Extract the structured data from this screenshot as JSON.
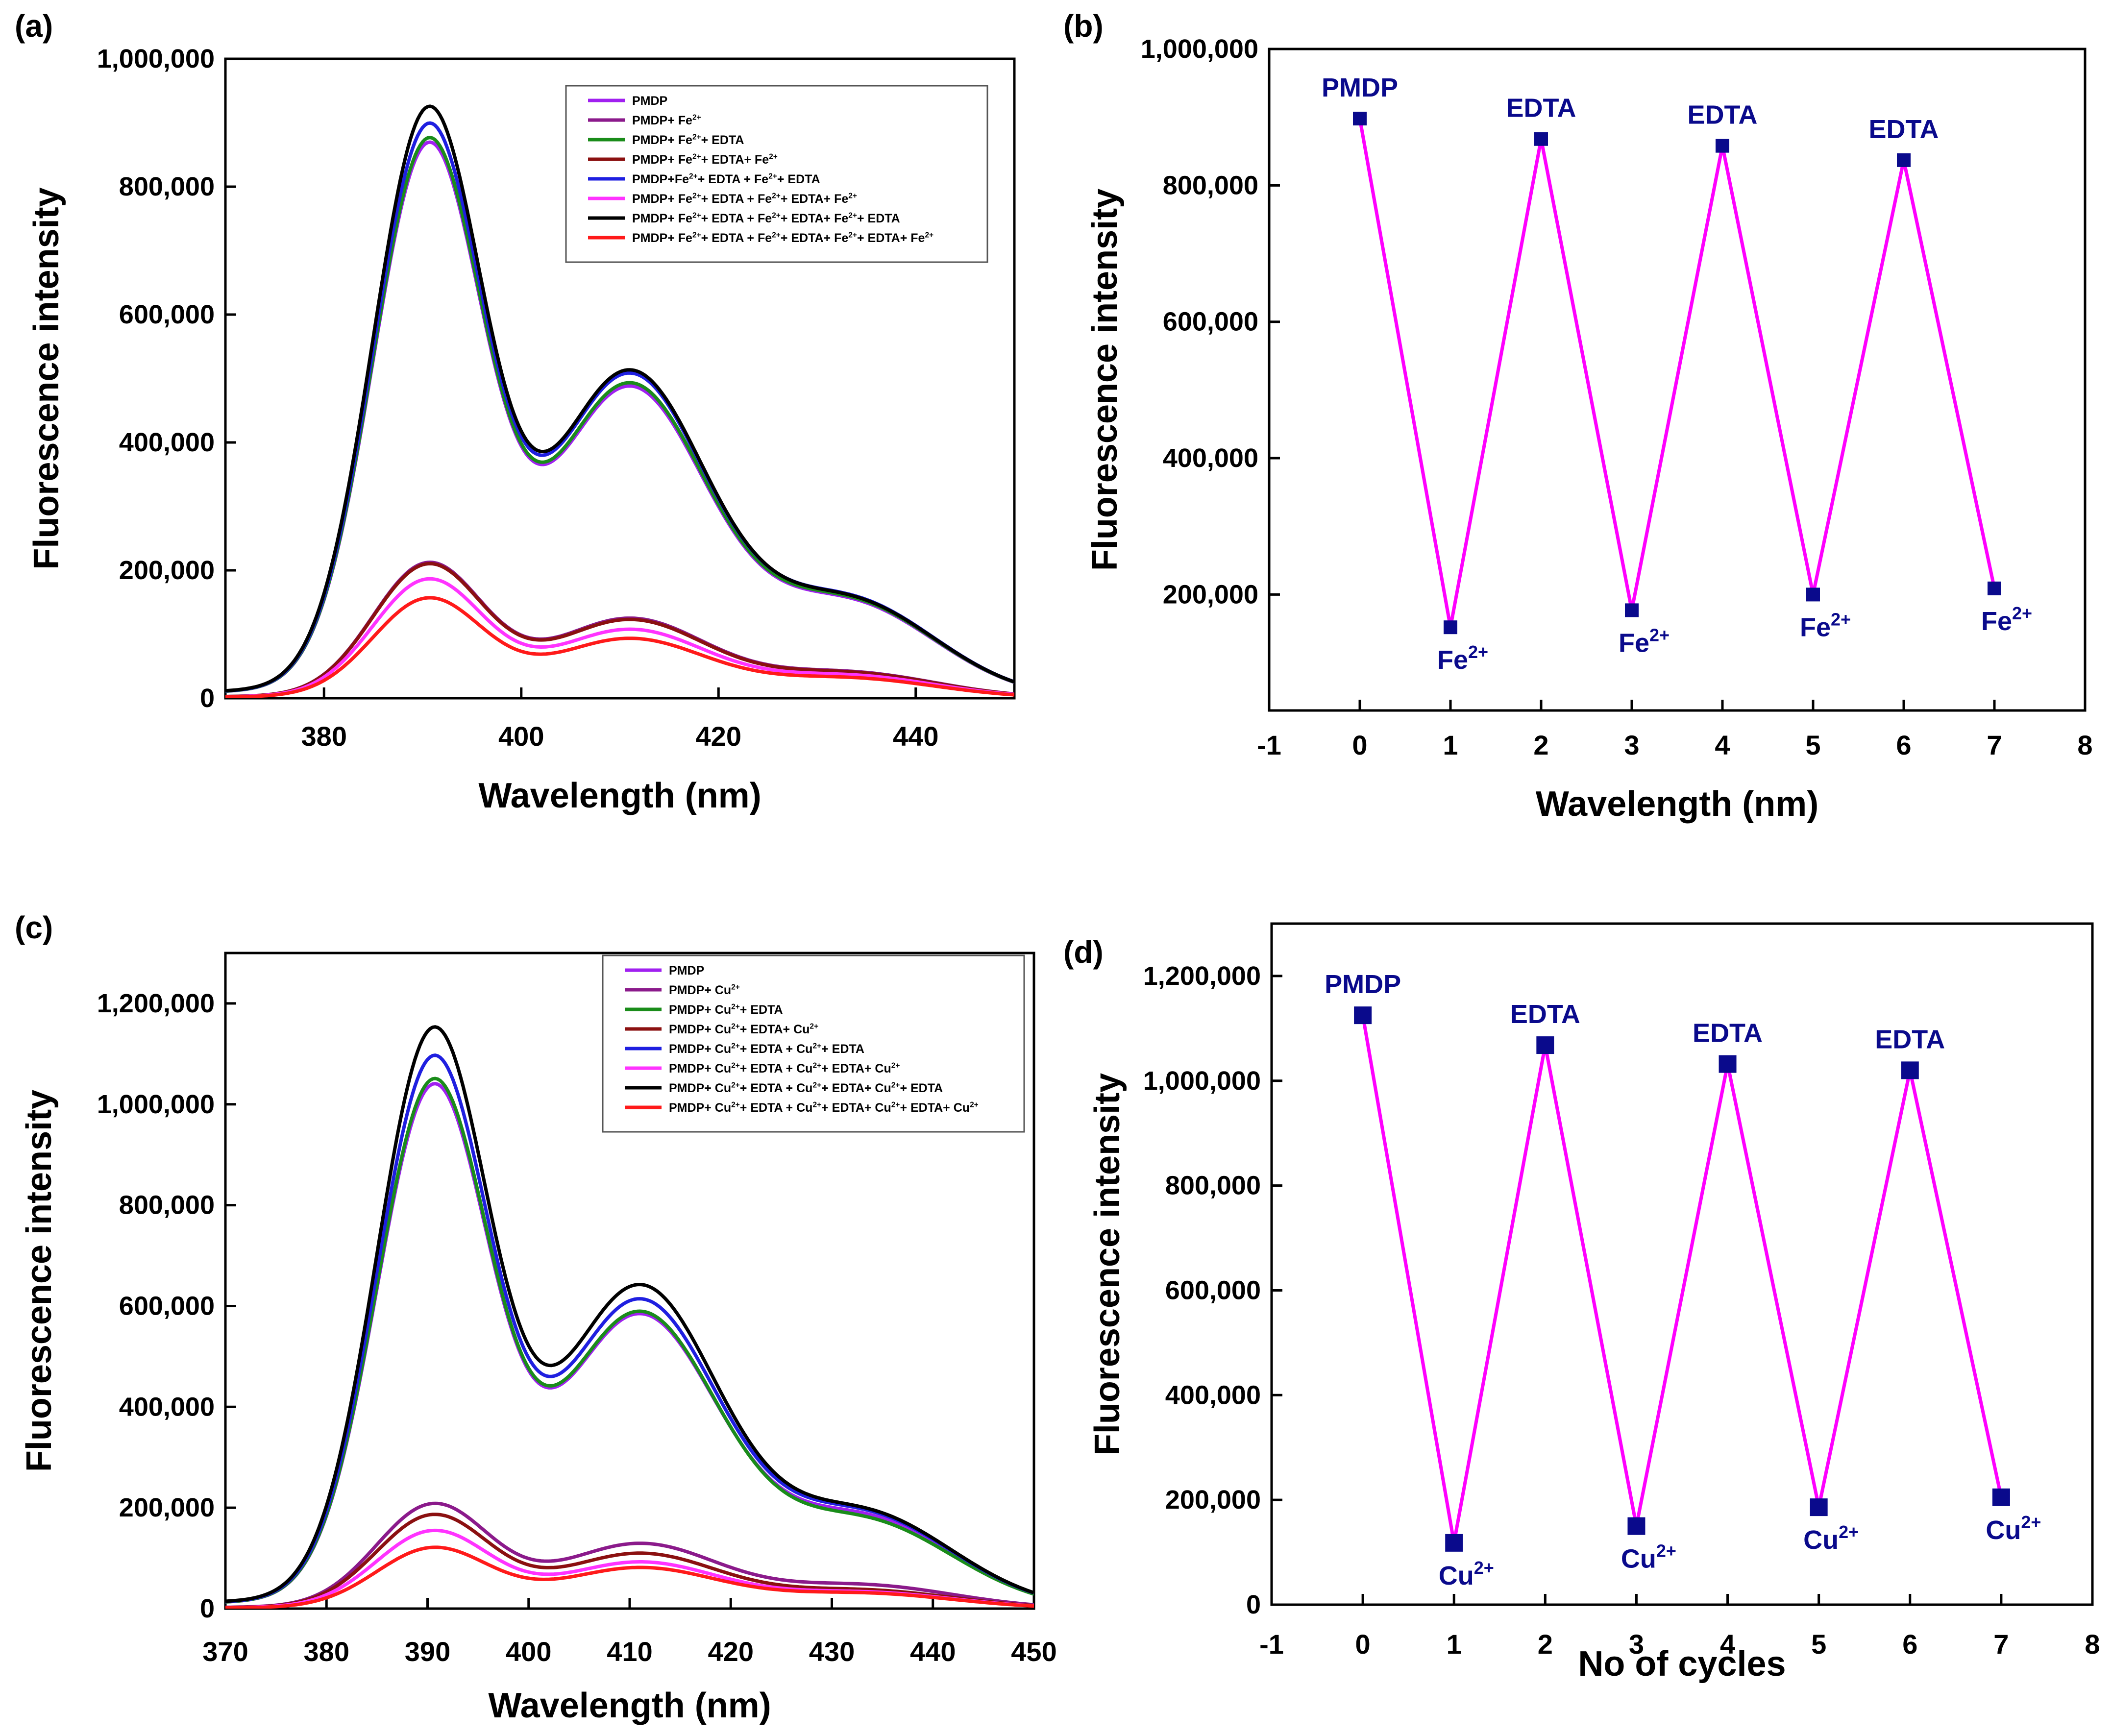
{
  "chart_data": [
    {
      "panel": "(a)",
      "type": "line",
      "xlabel": "Wavelength (nm)",
      "ylabel": "Fluorescence intensity",
      "xlim": [
        370,
        450
      ],
      "ylim": [
        0,
        1000000
      ],
      "xticks": [
        380,
        400,
        420,
        440
      ],
      "yticks": [
        0,
        200000,
        400000,
        600000,
        800000,
        1000000
      ],
      "xtick_labels": [
        "380",
        "400",
        "420",
        "440"
      ],
      "ytick_labels": [
        "0",
        "200,000",
        "400,000",
        "600,000",
        "800,000",
        "1,000,000"
      ],
      "legend_position": "top-right",
      "series": [
        {
          "name": "PMDP",
          "label_parts": [
            "PMDP"
          ],
          "color": "#a020f0",
          "peak390": 848000,
          "valley402": 345000,
          "peak410": 480000,
          "shoulder433": 148000
        },
        {
          "name": "PMDP+ Fe2+",
          "label_parts": [
            "PMDP+ Fe",
            "2+"
          ],
          "color": "#8b1a8b",
          "peak390": 207000,
          "valley402": 87000,
          "peak410": 123000,
          "shoulder433": 40000
        },
        {
          "name": "PMDP+ Fe2++ EDTA",
          "label_parts": [
            "PMDP+ Fe",
            "2+",
            "+ EDTA"
          ],
          "color": "#1a8c1a",
          "peak390": 855000,
          "valley402": 348000,
          "peak410": 485000,
          "shoulder433": 150000
        },
        {
          "name": "PMDP+ Fe2++ EDTA+ Fe2+",
          "label_parts": [
            "PMDP+ Fe",
            "2+",
            "+ EDTA+ Fe",
            "2+"
          ],
          "color": "#8b1010",
          "peak390": 205000,
          "valley402": 86000,
          "peak410": 121000,
          "shoulder433": 39000
        },
        {
          "name": "PMDP+Fe2++ EDTA + Fe2++ EDTA",
          "label_parts": [
            "PMDP+Fe",
            "2+",
            "+ EDTA + Fe",
            "2+",
            "+ EDTA"
          ],
          "color": "#1f1fe0",
          "peak390": 877000,
          "valley402": 356000,
          "peak410": 500000,
          "shoulder433": 153000
        },
        {
          "name": "PMDP+ Fe2++ EDTA + Fe2++ EDTA+ Fe2+",
          "label_parts": [
            "PMDP+ Fe",
            "2+",
            "+ EDTA + Fe",
            "2+",
            "+ EDTA+ Fe",
            "2+"
          ],
          "color": "#ff33ff",
          "peak390": 182000,
          "valley402": 75000,
          "peak410": 106000,
          "shoulder433": 35000
        },
        {
          "name": "PMDP+ Fe2++ EDTA + Fe2++ EDTA+ Fe2++ EDTA",
          "label_parts": [
            "PMDP+ Fe",
            "2+",
            "+ EDTA + Fe",
            "2+",
            "+ EDTA+ Fe",
            "2+",
            "+ EDTA"
          ],
          "color": "#000000",
          "peak390": 903000,
          "valley402": 360000,
          "peak410": 505000,
          "shoulder433": 152000
        },
        {
          "name": "PMDP+ Fe2++ EDTA + Fe2++ EDTA+ Fe2++ EDTA+ Fe2+",
          "label_parts": [
            "PMDP+ Fe",
            "2+",
            "+ EDTA + Fe",
            "2+",
            "+ EDTA+ Fe",
            "2+",
            "+ EDTA+ Fe",
            "2+"
          ],
          "color": "#ff1a1a",
          "peak390": 153000,
          "valley402": 66000,
          "peak410": 92000,
          "shoulder433": 31000
        }
      ]
    },
    {
      "panel": "(b)",
      "type": "line",
      "xlabel": "Wavelength (nm)",
      "ylabel": "Fluorescence intensity",
      "xlim": [
        -1,
        8
      ],
      "ylim": [
        30000,
        1000000
      ],
      "xticks": [
        -1,
        0,
        1,
        2,
        3,
        4,
        5,
        6,
        7,
        8
      ],
      "yticks": [
        200000,
        400000,
        600000,
        800000,
        1000000
      ],
      "xtick_labels": [
        "-1",
        "0",
        "1",
        "2",
        "3",
        "4",
        "5",
        "6",
        "7",
        "8"
      ],
      "ytick_labels": [
        "200,000",
        "400,000",
        "600,000",
        "800,000",
        "1,000,000"
      ],
      "line_color": "#ff00ff",
      "marker_color": "#0a0a8c",
      "x": [
        0,
        1,
        2,
        3,
        4,
        5,
        6,
        7
      ],
      "y": [
        898000,
        152000,
        868000,
        177000,
        858000,
        200000,
        837000,
        209000
      ],
      "annotations": [
        {
          "x": 0,
          "text": "PMDP",
          "sup": "",
          "pos": "above"
        },
        {
          "x": 1,
          "text": "Fe",
          "sup": "2+",
          "pos": "below"
        },
        {
          "x": 2,
          "text": "EDTA",
          "sup": "",
          "pos": "above"
        },
        {
          "x": 3,
          "text": "Fe",
          "sup": "2+",
          "pos": "below"
        },
        {
          "x": 4,
          "text": "EDTA",
          "sup": "",
          "pos": "above"
        },
        {
          "x": 5,
          "text": "Fe",
          "sup": "2+",
          "pos": "below"
        },
        {
          "x": 6,
          "text": "EDTA",
          "sup": "",
          "pos": "above"
        },
        {
          "x": 7,
          "text": "Fe",
          "sup": "2+",
          "pos": "below"
        }
      ]
    },
    {
      "panel": "(c)",
      "type": "line",
      "xlabel": "Wavelength (nm)",
      "ylabel": "Fluorescence intensity",
      "xlim": [
        370,
        450
      ],
      "ylim": [
        0,
        1300000
      ],
      "xticks": [
        370,
        380,
        390,
        400,
        410,
        420,
        430,
        440,
        450
      ],
      "yticks": [
        0,
        200000,
        400000,
        600000,
        800000,
        1000000,
        1200000
      ],
      "xtick_labels": [
        "370",
        "380",
        "390",
        "400",
        "410",
        "420",
        "430",
        "440",
        "450"
      ],
      "ytick_labels": [
        "0",
        "200,000",
        "400,000",
        "600,000",
        "800,000",
        "1,000,000",
        "1,200,000"
      ],
      "legend_position": "top-right",
      "series": [
        {
          "name": "PMDP",
          "label_parts": [
            "PMDP"
          ],
          "color": "#a020f0",
          "peak390": 1015000,
          "valley402": 413000,
          "peak410": 575000,
          "shoulder433": 178000
        },
        {
          "name": "PMDP+ Cu2+",
          "label_parts": [
            "PMDP+ Cu",
            "2+"
          ],
          "color": "#8b1a8b",
          "peak390": 203000,
          "valley402": 92000,
          "peak410": 127000,
          "shoulder433": 46000
        },
        {
          "name": "PMDP+ Cu2++ EDTA",
          "label_parts": [
            "PMDP+ Cu",
            "2+",
            "+ EDTA"
          ],
          "color": "#1a8c1a",
          "peak390": 1025000,
          "valley402": 415000,
          "peak410": 580000,
          "shoulder433": 172000
        },
        {
          "name": "PMDP+ Cu2++ EDTA+ Cu2+",
          "label_parts": [
            "PMDP+ Cu",
            "2+",
            "+ EDTA+ Cu",
            "2+"
          ],
          "color": "#8b1010",
          "peak390": 182000,
          "valley402": 79000,
          "peak410": 108000,
          "shoulder433": 36000
        },
        {
          "name": "PMDP+ Cu2++ EDTA + Cu2++ EDTA",
          "label_parts": [
            "PMDP+ Cu",
            "2+",
            "+ EDTA + Cu",
            "2+",
            "+ EDTA"
          ],
          "color": "#1f1fe0",
          "peak390": 1070000,
          "valley402": 437000,
          "peak410": 604000,
          "shoulder433": 185000
        },
        {
          "name": "PMDP+ Cu2++ EDTA + Cu2++ EDTA+ Cu2+",
          "label_parts": [
            "PMDP+ Cu",
            "2+",
            "+ EDTA + Cu",
            "2+",
            "+ EDTA+ Cu",
            "2+"
          ],
          "color": "#ff33ff",
          "peak390": 151000,
          "valley402": 68000,
          "peak410": 91000,
          "shoulder433": 32000
        },
        {
          "name": "PMDP+ Cu2++ EDTA + Cu2++ EDTA+ Cu2++ EDTA",
          "label_parts": [
            "PMDP+ Cu",
            "2+",
            "+ EDTA + Cu",
            "2+",
            "+ EDTA+ Cu",
            "2+",
            "+ EDTA"
          ],
          "color": "#000000",
          "peak390": 1125000,
          "valley402": 455000,
          "peak410": 632000,
          "shoulder433": 188000
        },
        {
          "name": "PMDP+ Cu2++ EDTA + Cu2++ EDTA+ Cu2++ EDTA+ Cu2+",
          "label_parts": [
            "PMDP+ Cu",
            "2+",
            "+ EDTA + Cu",
            "2+",
            "+ EDTA+ Cu",
            "2+",
            "+ EDTA+ Cu",
            "2+"
          ],
          "color": "#ff1a1a",
          "peak390": 118000,
          "valley402": 60000,
          "peak410": 80000,
          "shoulder433": 30000
        }
      ]
    },
    {
      "panel": "(d)",
      "type": "line",
      "xlabel": "No of cycles",
      "ylabel": "Fluorescence intensity",
      "xlim": [
        -1,
        8
      ],
      "ylim": [
        0,
        1300000
      ],
      "xticks": [
        -1,
        0,
        1,
        2,
        3,
        4,
        5,
        6,
        7,
        8
      ],
      "yticks": [
        0,
        200000,
        400000,
        600000,
        800000,
        1000000,
        1200000
      ],
      "xtick_labels": [
        "-1",
        "0",
        "1",
        "2",
        "3",
        "4",
        "5",
        "6",
        "7",
        "8"
      ],
      "ytick_labels": [
        "0",
        "200,000",
        "400,000",
        "600,000",
        "800,000",
        "1,000,000",
        "1,200,000"
      ],
      "line_color": "#ff00ff",
      "marker_color": "#0a0a8c",
      "x": [
        0,
        1,
        2,
        3,
        4,
        5,
        6,
        7
      ],
      "y": [
        1125000,
        118000,
        1068000,
        150000,
        1032000,
        186000,
        1020000,
        205000
      ],
      "annotations": [
        {
          "x": 0,
          "text": "PMDP",
          "sup": "",
          "pos": "above"
        },
        {
          "x": 1,
          "text": "Cu",
          "sup": "2+",
          "pos": "below"
        },
        {
          "x": 2,
          "text": "EDTA",
          "sup": "",
          "pos": "above"
        },
        {
          "x": 3,
          "text": "Cu",
          "sup": "2+",
          "pos": "below"
        },
        {
          "x": 4,
          "text": "EDTA",
          "sup": "",
          "pos": "above"
        },
        {
          "x": 5,
          "text": "Cu",
          "sup": "2+",
          "pos": "below"
        },
        {
          "x": 6,
          "text": "EDTA",
          "sup": "",
          "pos": "above"
        },
        {
          "x": 7,
          "text": "Cu",
          "sup": "2+",
          "pos": "below"
        }
      ]
    }
  ]
}
